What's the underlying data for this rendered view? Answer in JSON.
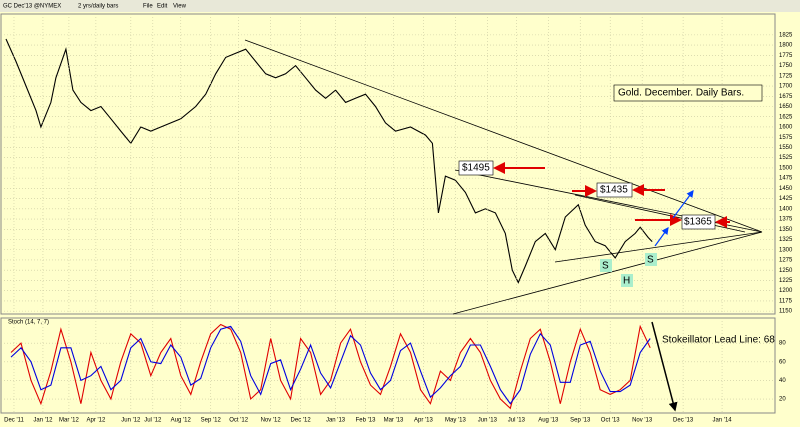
{
  "header": {
    "symbol": "GC Dec'13 @NYMEX",
    "period": "2 yrs/daily bars",
    "menu": [
      "File",
      "Edit",
      "View"
    ]
  },
  "chart_data": [
    {
      "type": "line",
      "annotations": [
        "Gold. December. Daily Bars.",
        "$1495",
        "$1435",
        "$1365",
        "S",
        "H",
        "S"
      ],
      "x": [
        5,
        15,
        25,
        35,
        40,
        50,
        55,
        65,
        72,
        80,
        90,
        100,
        110,
        120,
        130,
        140,
        150,
        160,
        170,
        180,
        195,
        205,
        215,
        225,
        235,
        245,
        255,
        265,
        275,
        285,
        295,
        305,
        315,
        325,
        335,
        345,
        355,
        365,
        375,
        385,
        395,
        410,
        425,
        432,
        438,
        445,
        455,
        465,
        475,
        485,
        495,
        505,
        512,
        518,
        525,
        535,
        545,
        555,
        565,
        578,
        585,
        595,
        605,
        615,
        625,
        635,
        640,
        648,
        652
      ],
      "series": [
        {
          "name": "GC",
          "color": "#000000",
          "values": [
            1815,
            1760,
            1700,
            1640,
            1600,
            1660,
            1720,
            1790,
            1690,
            1660,
            1640,
            1650,
            1620,
            1590,
            1560,
            1600,
            1590,
            1600,
            1610,
            1620,
            1650,
            1680,
            1730,
            1770,
            1780,
            1790,
            1760,
            1730,
            1720,
            1730,
            1750,
            1720,
            1690,
            1670,
            1690,
            1660,
            1670,
            1680,
            1650,
            1610,
            1590,
            1600,
            1580,
            1560,
            1390,
            1480,
            1470,
            1440,
            1390,
            1400,
            1390,
            1340,
            1250,
            1220,
            1260,
            1320,
            1340,
            1300,
            1380,
            1410,
            1360,
            1320,
            1310,
            1280,
            1320,
            1340,
            1355,
            1330,
            1320
          ]
        }
      ],
      "xlim": [
        0,
        775
      ],
      "ylim": [
        1143,
        1876
      ],
      "yticks": [
        1150,
        1175,
        1200,
        1225,
        1250,
        1275,
        1300,
        1325,
        1350,
        1375,
        1400,
        1425,
        1450,
        1475,
        1500,
        1525,
        1550,
        1575,
        1600,
        1625,
        1650,
        1675,
        1700,
        1725,
        1750,
        1775,
        1800,
        1825
      ],
      "grid": true
    },
    {
      "type": "line",
      "title": "Stoch (14, 7, 7)",
      "annotations": [
        "Stokeillator Lead Line: 68"
      ],
      "x": [
        10,
        20,
        30,
        40,
        50,
        60,
        70,
        80,
        90,
        100,
        110,
        120,
        130,
        140,
        150,
        160,
        170,
        180,
        190,
        200,
        210,
        220,
        230,
        240,
        250,
        260,
        270,
        280,
        290,
        300,
        310,
        320,
        330,
        340,
        350,
        360,
        370,
        380,
        390,
        400,
        410,
        420,
        430,
        440,
        450,
        460,
        470,
        480,
        490,
        500,
        510,
        520,
        530,
        540,
        550,
        560,
        570,
        580,
        590,
        600,
        610,
        620,
        630,
        640,
        650
      ],
      "series": [
        {
          "name": "%K",
          "color": "#e00000",
          "values": [
            70,
            80,
            40,
            15,
            50,
            95,
            60,
            15,
            70,
            40,
            20,
            60,
            90,
            80,
            45,
            70,
            85,
            45,
            25,
            60,
            90,
            100,
            95,
            70,
            20,
            30,
            85,
            40,
            20,
            85,
            70,
            25,
            40,
            80,
            95,
            60,
            35,
            25,
            55,
            90,
            70,
            30,
            15,
            50,
            40,
            70,
            85,
            70,
            40,
            20,
            10,
            50,
            85,
            95,
            60,
            15,
            60,
            95,
            70,
            30,
            25,
            30,
            40,
            98,
            75
          ]
        },
        {
          "name": "%D",
          "color": "#0000e0",
          "values": [
            65,
            75,
            60,
            30,
            35,
            75,
            75,
            40,
            45,
            55,
            30,
            40,
            75,
            85,
            60,
            58,
            78,
            65,
            35,
            42,
            75,
            95,
            98,
            82,
            45,
            25,
            58,
            62,
            30,
            52,
            78,
            48,
            32,
            60,
            88,
            78,
            48,
            30,
            40,
            72,
            80,
            50,
            22,
            32,
            45,
            55,
            78,
            78,
            55,
            30,
            15,
            30,
            68,
            90,
            78,
            38,
            38,
            78,
            82,
            50,
            28,
            28,
            35,
            70,
            85
          ]
        }
      ],
      "xlim": [
        0,
        775
      ],
      "ylim": [
        5,
        107
      ],
      "yticks": [
        20,
        40,
        60,
        80
      ],
      "grid": true,
      "xticks": [
        {
          "value": 13,
          "label": "Dec '11"
        },
        {
          "value": 42,
          "label": "Jan '12"
        },
        {
          "value": 68,
          "label": "Mar '12"
        },
        {
          "value": 95,
          "label": "Apr '12"
        },
        {
          "value": 130,
          "label": "Jun '12"
        },
        {
          "value": 152,
          "label": "Jul '12"
        },
        {
          "value": 180,
          "label": "Aug '12"
        },
        {
          "value": 210,
          "label": "Sep '12"
        },
        {
          "value": 238,
          "label": "Oct '12"
        },
        {
          "value": 270,
          "label": "Nov '12"
        },
        {
          "value": 300,
          "label": "Dec '12"
        },
        {
          "value": 335,
          "label": "Jan '13"
        },
        {
          "value": 365,
          "label": "Feb '13"
        },
        {
          "value": 393,
          "label": "Mar '13"
        },
        {
          "value": 423,
          "label": "Apr '13"
        },
        {
          "value": 455,
          "label": "May '13"
        },
        {
          "value": 487,
          "label": "Jun '13"
        },
        {
          "value": 516,
          "label": "Jul '13"
        },
        {
          "value": 548,
          "label": "Aug '13"
        },
        {
          "value": 580,
          "label": "Sep '13"
        },
        {
          "value": 610,
          "label": "Oct '13"
        },
        {
          "value": 642,
          "label": "Nov '13"
        },
        {
          "value": 683,
          "label": "Dec '13"
        },
        {
          "value": 722,
          "label": "Jan '14"
        }
      ]
    }
  ]
}
